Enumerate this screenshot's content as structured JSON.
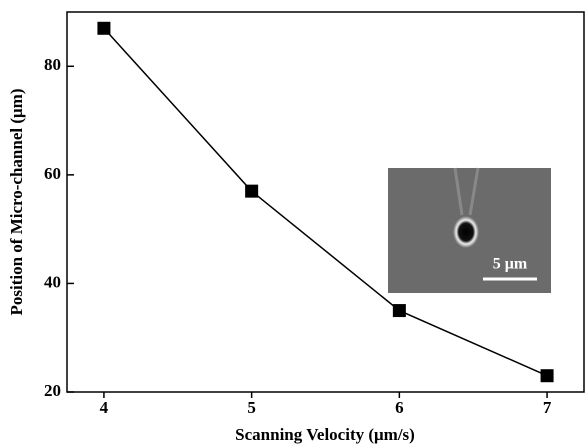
{
  "chart_data": {
    "type": "line",
    "x_label": "Scanning Velocity (μm/s)",
    "y_label": "Position of Micro-channel (μm)",
    "x": [
      4,
      5,
      6,
      7
    ],
    "series": [
      {
        "values": [
          87,
          57,
          35,
          23
        ],
        "color": "#000000"
      }
    ],
    "xlim": [
      3.75,
      7.25
    ],
    "xticks": [
      4,
      5,
      6,
      7
    ],
    "ylim": [
      20,
      90
    ],
    "yticks": [
      20,
      40,
      60,
      80
    ],
    "marker": "square",
    "inset_scale_label": "5 μm"
  }
}
